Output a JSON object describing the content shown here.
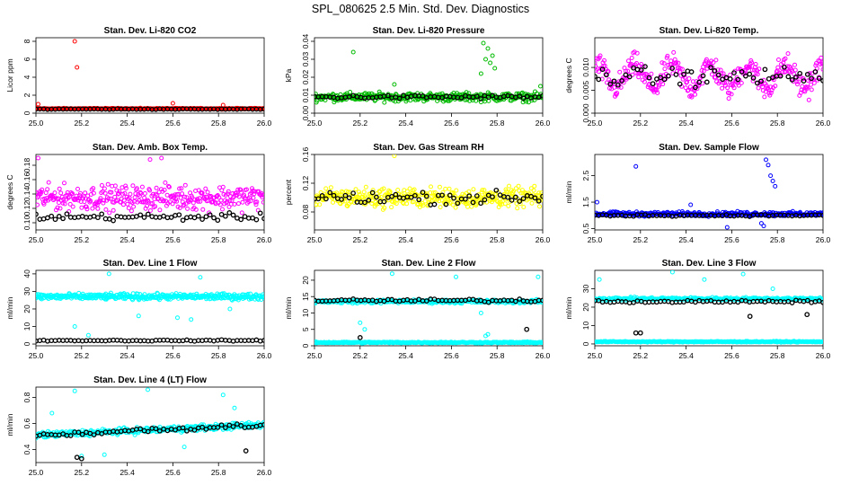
{
  "page_title": "SPL_080625  2.5 Min. Std. Dev. Diagnostics",
  "chart_data": [
    {
      "type": "scatter",
      "title": "Stan. Dev. Li-820 CO2",
      "ylabel": "Licor ppm",
      "xlim": [
        25.0,
        26.0
      ],
      "ylim": [
        0,
        8.4
      ],
      "xticks": [
        25.0,
        25.2,
        25.4,
        25.6,
        25.8,
        26.0
      ],
      "xtick_labels": [
        "25.0",
        "25.2",
        "25.4",
        "25.6",
        "25.8",
        "26.0"
      ],
      "yticks": [
        0,
        2,
        4,
        6,
        8
      ],
      "ytick_labels": [
        "0",
        "2",
        "4",
        "6",
        "8"
      ],
      "series": [
        {
          "name": "raw",
          "color": "#ff0000",
          "base": 0.5,
          "spread": 0.08,
          "n": 320,
          "outliers": [
            [
              25.17,
              8.0
            ],
            [
              25.18,
              5.1
            ],
            [
              25.01,
              1.0
            ],
            [
              25.6,
              1.1
            ],
            [
              25.82,
              0.9
            ]
          ]
        },
        {
          "name": "mean",
          "color": "#000000",
          "base": 0.45,
          "spread": 0.05,
          "n": 60
        }
      ]
    },
    {
      "type": "scatter",
      "title": "Stan. Dev. Li-820 Pressure",
      "ylabel": "kPa",
      "xlim": [
        25.0,
        26.0
      ],
      "ylim": [
        0,
        0.042
      ],
      "xticks": [
        25.0,
        25.2,
        25.4,
        25.6,
        25.8,
        26.0
      ],
      "xtick_labels": [
        "25.0",
        "25.2",
        "25.4",
        "25.6",
        "25.8",
        "26.0"
      ],
      "yticks": [
        0,
        0.01,
        0.02,
        0.03,
        0.04
      ],
      "ytick_labels": [
        "0.00",
        "0.01",
        "0.02",
        "0.03",
        "0.04"
      ],
      "series": [
        {
          "name": "raw",
          "color": "#00bb00",
          "base": 0.009,
          "spread": 0.0035,
          "n": 360,
          "outliers": [
            [
              25.17,
              0.034
            ],
            [
              25.74,
              0.039
            ],
            [
              25.76,
              0.036
            ],
            [
              25.78,
              0.032
            ],
            [
              25.75,
              0.03
            ],
            [
              25.79,
              0.025
            ],
            [
              25.73,
              0.022
            ],
            [
              25.77,
              0.028
            ],
            [
              25.99,
              0.015
            ],
            [
              25.35,
              0.016
            ]
          ]
        },
        {
          "name": "mean",
          "color": "#000000",
          "base": 0.009,
          "spread": 0.0015,
          "n": 60
        }
      ]
    },
    {
      "type": "scatter",
      "title": "Stan. Dev. Li-820 Temp.",
      "ylabel": "degrees C",
      "xlim": [
        25.0,
        26.0
      ],
      "ylim": [
        0,
        0.0165
      ],
      "xticks": [
        25.0,
        25.2,
        25.4,
        25.6,
        25.8,
        26.0
      ],
      "xtick_labels": [
        "25.0",
        "25.2",
        "25.4",
        "25.6",
        "25.8",
        "26.0"
      ],
      "yticks": [
        0,
        0.005,
        0.01
      ],
      "ytick_labels": [
        "0.000",
        "0.005",
        "0.010"
      ],
      "series": [
        {
          "name": "raw",
          "color": "#ff00ff",
          "base": 0.008,
          "spread": 0.004,
          "n": 340,
          "wavy": true,
          "outliers": []
        },
        {
          "name": "mean",
          "color": "#000000",
          "base": 0.008,
          "spread": 0.003,
          "n": 60
        }
      ]
    },
    {
      "type": "scatter",
      "title": "Stan. Dev. Amb. Box Temp.",
      "ylabel": "degrees C",
      "xlim": [
        25.0,
        26.0
      ],
      "ylim": [
        0.09,
        0.195
      ],
      "xticks": [
        25.0,
        25.2,
        25.4,
        25.6,
        25.8,
        26.0
      ],
      "xtick_labels": [
        "25.0",
        "25.2",
        "25.4",
        "25.6",
        "25.8",
        "26.0"
      ],
      "yticks": [
        0.1,
        0.12,
        0.14,
        0.16,
        0.18
      ],
      "ytick_labels": [
        "0.10",
        "0.12",
        "0.14",
        "0.16",
        "0.18"
      ],
      "series": [
        {
          "name": "raw",
          "color": "#ff00ff",
          "base": 0.135,
          "spread": 0.025,
          "n": 340,
          "outliers": [
            [
              25.01,
              0.19
            ],
            [
              25.5,
              0.188
            ],
            [
              25.55,
              0.19
            ]
          ]
        },
        {
          "name": "mean",
          "color": "#000000",
          "base": 0.108,
          "spread": 0.007,
          "n": 60
        }
      ]
    },
    {
      "type": "scatter",
      "title": "Stan. Dev. Gas Stream RH",
      "ylabel": "percent",
      "xlim": [
        25.0,
        26.0
      ],
      "ylim": [
        0.055,
        0.16
      ],
      "xticks": [
        25.0,
        25.2,
        25.4,
        25.6,
        25.8,
        26.0
      ],
      "xtick_labels": [
        "25.0",
        "25.2",
        "25.4",
        "25.6",
        "25.8",
        "26.0"
      ],
      "yticks": [
        0.08,
        0.12,
        0.16
      ],
      "ytick_labels": [
        "0.08",
        "0.12",
        "0.16"
      ],
      "series": [
        {
          "name": "raw",
          "color": "#ffff00",
          "base": 0.1,
          "spread": 0.02,
          "n": 360,
          "outliers": [
            [
              25.35,
              0.158
            ]
          ]
        },
        {
          "name": "mean",
          "color": "#000000",
          "base": 0.1,
          "spread": 0.013,
          "n": 60
        }
      ]
    },
    {
      "type": "scatter",
      "title": "Stan. Dev. Sample Flow",
      "ylabel": "ml/min",
      "xlim": [
        25.0,
        26.0
      ],
      "ylim": [
        0.45,
        3.3
      ],
      "xticks": [
        25.0,
        25.2,
        25.4,
        25.6,
        25.8,
        26.0
      ],
      "xtick_labels": [
        "25.0",
        "25.2",
        "25.4",
        "25.6",
        "25.8",
        "26.0"
      ],
      "yticks": [
        0.5,
        1.5,
        2.5
      ],
      "ytick_labels": [
        "0.5",
        "1.5",
        "2.5"
      ],
      "series": [
        {
          "name": "raw",
          "color": "#0000ff",
          "base": 1.05,
          "spread": 0.12,
          "n": 340,
          "outliers": [
            [
              25.75,
              3.1
            ],
            [
              25.76,
              2.9
            ],
            [
              25.77,
              2.5
            ],
            [
              25.78,
              2.3
            ],
            [
              25.79,
              2.1
            ],
            [
              25.18,
              2.85
            ],
            [
              25.01,
              1.5
            ],
            [
              25.73,
              0.7
            ],
            [
              25.74,
              0.6
            ],
            [
              25.42,
              1.4
            ],
            [
              25.58,
              0.55
            ]
          ]
        },
        {
          "name": "mean",
          "color": "#000000",
          "base": 1.0,
          "spread": 0.05,
          "n": 60
        }
      ]
    },
    {
      "type": "scatter",
      "title": "Stan. Dev. Line 1 Flow",
      "ylabel": "ml/min",
      "xlim": [
        25.0,
        26.0
      ],
      "ylim": [
        -1,
        42
      ],
      "xticks": [
        25.0,
        25.2,
        25.4,
        25.6,
        25.8,
        26.0
      ],
      "xtick_labels": [
        "25.0",
        "25.2",
        "25.4",
        "25.6",
        "25.8",
        "26.0"
      ],
      "yticks": [
        0,
        10,
        20,
        30,
        40
      ],
      "ytick_labels": [
        "0",
        "10",
        "20",
        "30",
        "40"
      ],
      "series": [
        {
          "name": "raw",
          "color": "#00ffff",
          "base": 27,
          "spread": 2.5,
          "n": 400,
          "outliers": [
            [
              25.32,
              40
            ],
            [
              25.72,
              38
            ],
            [
              25.23,
              5
            ],
            [
              25.17,
              10
            ],
            [
              25.62,
              15
            ],
            [
              25.68,
              14
            ],
            [
              25.45,
              16
            ],
            [
              25.85,
              20
            ]
          ]
        },
        {
          "name": "mean",
          "color": "#000000",
          "base": 2.0,
          "spread": 0.5,
          "n": 60
        }
      ]
    },
    {
      "type": "scatter",
      "title": "Stan. Dev. Line 2 Flow",
      "ylabel": "ml/min",
      "xlim": [
        25.0,
        26.0
      ],
      "ylim": [
        0,
        23
      ],
      "xticks": [
        25.0,
        25.2,
        25.4,
        25.6,
        25.8,
        26.0
      ],
      "xtick_labels": [
        "25.0",
        "25.2",
        "25.4",
        "25.6",
        "25.8",
        "26.0"
      ],
      "yticks": [
        0,
        5,
        10,
        15,
        20
      ],
      "ytick_labels": [
        "0",
        "5",
        "10",
        "15",
        "20"
      ],
      "series": [
        {
          "name": "raw-high",
          "color": "#00ffff",
          "base": 13.5,
          "spread": 0.8,
          "n": 300,
          "outliers": [
            [
              25.34,
              22
            ],
            [
              25.98,
              21
            ],
            [
              25.62,
              21
            ],
            [
              25.2,
              7
            ],
            [
              25.22,
              5
            ],
            [
              25.73,
              10
            ]
          ]
        },
        {
          "name": "raw-low",
          "color": "#00ffff",
          "base": 1.0,
          "spread": 0.3,
          "n": 300,
          "outliers": [
            [
              25.75,
              3
            ],
            [
              25.76,
              3.5
            ]
          ]
        },
        {
          "name": "mean",
          "color": "#000000",
          "base": 13.8,
          "spread": 0.7,
          "n": 60,
          "outliers": [
            [
              25.2,
              2.5
            ],
            [
              25.93,
              5
            ]
          ]
        }
      ]
    },
    {
      "type": "scatter",
      "title": "Stan. Dev. Line 3 Flow",
      "ylabel": "ml/min",
      "xlim": [
        25.0,
        26.0
      ],
      "ylim": [
        -1,
        40
      ],
      "xticks": [
        25.0,
        25.2,
        25.4,
        25.6,
        25.8,
        26.0
      ],
      "xtick_labels": [
        "25.0",
        "25.2",
        "25.4",
        "25.6",
        "25.8",
        "26.0"
      ],
      "yticks": [
        0,
        10,
        20,
        30
      ],
      "ytick_labels": [
        "0",
        "10",
        "20",
        "30"
      ],
      "series": [
        {
          "name": "raw-high",
          "color": "#00ffff",
          "base": 24.5,
          "spread": 1.2,
          "n": 300,
          "outliers": [
            [
              25.34,
              39
            ],
            [
              25.02,
              35
            ],
            [
              25.65,
              38
            ],
            [
              25.78,
              30
            ],
            [
              25.48,
              35
            ]
          ]
        },
        {
          "name": "raw-low",
          "color": "#00ffff",
          "base": 1.2,
          "spread": 0.4,
          "n": 300,
          "outliers": []
        },
        {
          "name": "mean",
          "color": "#000000",
          "base": 23,
          "spread": 1.0,
          "n": 60,
          "outliers": [
            [
              25.18,
              6
            ],
            [
              25.2,
              6
            ],
            [
              25.68,
              15
            ],
            [
              25.93,
              16
            ]
          ]
        }
      ]
    },
    {
      "type": "scatter",
      "title": "Stan. Dev. Line 4 (LT) Flow",
      "ylabel": "ml/min",
      "xlim": [
        25.0,
        26.0
      ],
      "ylim": [
        0.3,
        0.88
      ],
      "xticks": [
        25.0,
        25.2,
        25.4,
        25.6,
        25.8,
        26.0
      ],
      "xtick_labels": [
        "25.0",
        "25.2",
        "25.4",
        "25.6",
        "25.8",
        "26.0"
      ],
      "yticks": [
        0.4,
        0.6,
        0.8
      ],
      "ytick_labels": [
        "0.4",
        "0.6",
        "0.8"
      ],
      "series": [
        {
          "name": "raw",
          "color": "#00ffff",
          "base": 0.55,
          "spread": 0.035,
          "n": 340,
          "trend": 0.08,
          "outliers": [
            [
              25.17,
              0.85
            ],
            [
              25.49,
              0.86
            ],
            [
              25.82,
              0.82
            ],
            [
              25.87,
              0.72
            ],
            [
              25.07,
              0.68
            ],
            [
              25.2,
              0.35
            ],
            [
              25.3,
              0.36
            ],
            [
              25.65,
              0.42
            ]
          ]
        },
        {
          "name": "mean",
          "color": "#000000",
          "base": 0.55,
          "spread": 0.03,
          "n": 60,
          "trend": 0.08,
          "outliers": [
            [
              25.18,
              0.34
            ],
            [
              25.2,
              0.33
            ],
            [
              25.92,
              0.39
            ]
          ]
        }
      ]
    }
  ]
}
